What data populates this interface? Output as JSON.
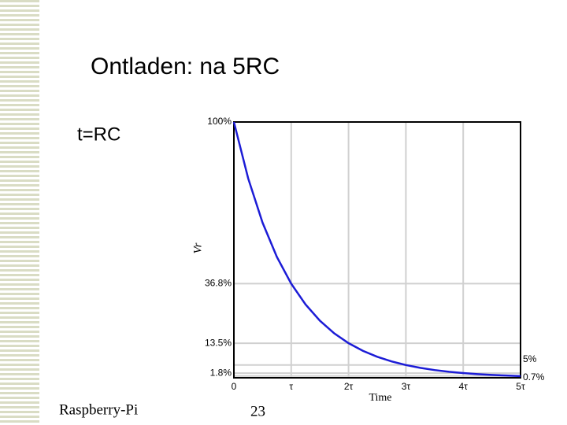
{
  "slide": {
    "title": "Ontladen: na 5RC",
    "bullet": "t=RC",
    "footer": "Raspberry-Pi",
    "page_number": "23"
  },
  "chart_data": {
    "type": "line",
    "xlabel": "Time",
    "ylabel": "Vr",
    "x": [
      0,
      0.25,
      0.5,
      0.75,
      1,
      1.25,
      1.5,
      1.75,
      2,
      2.25,
      2.5,
      2.75,
      3,
      3.25,
      3.5,
      3.75,
      4,
      4.25,
      4.5,
      4.75,
      5
    ],
    "series": [
      {
        "color": "#1c1cd6",
        "values": [
          100,
          77.9,
          60.65,
          47.24,
          36.79,
          28.65,
          22.31,
          17.38,
          13.53,
          10.54,
          8.21,
          6.39,
          4.98,
          3.88,
          3.02,
          2.35,
          1.83,
          1.43,
          1.11,
          0.87,
          0.67
        ]
      }
    ],
    "xlim": [
      0,
      5
    ],
    "ylim": [
      0,
      100
    ],
    "xticks": [
      0,
      {
        "value": 1,
        "label": "τ"
      },
      {
        "value": 2,
        "label": "2τ"
      },
      {
        "value": 3,
        "label": "3τ"
      },
      {
        "value": 4,
        "label": "4τ"
      },
      {
        "value": 5,
        "label": "5τ"
      }
    ],
    "yticks": [
      {
        "value": 1.8,
        "label": "1.8%"
      },
      {
        "value": 13.5,
        "label": "13.5%"
      },
      {
        "value": 36.8,
        "label": "36.8%"
      },
      {
        "value": 100,
        "label": "100%"
      }
    ],
    "y2lim": [
      0,
      100
    ],
    "y2ticks": [
      {
        "value": 0.7,
        "label": "0.7%"
      },
      {
        "value": 5,
        "label": "5%"
      }
    ],
    "grid": true
  }
}
